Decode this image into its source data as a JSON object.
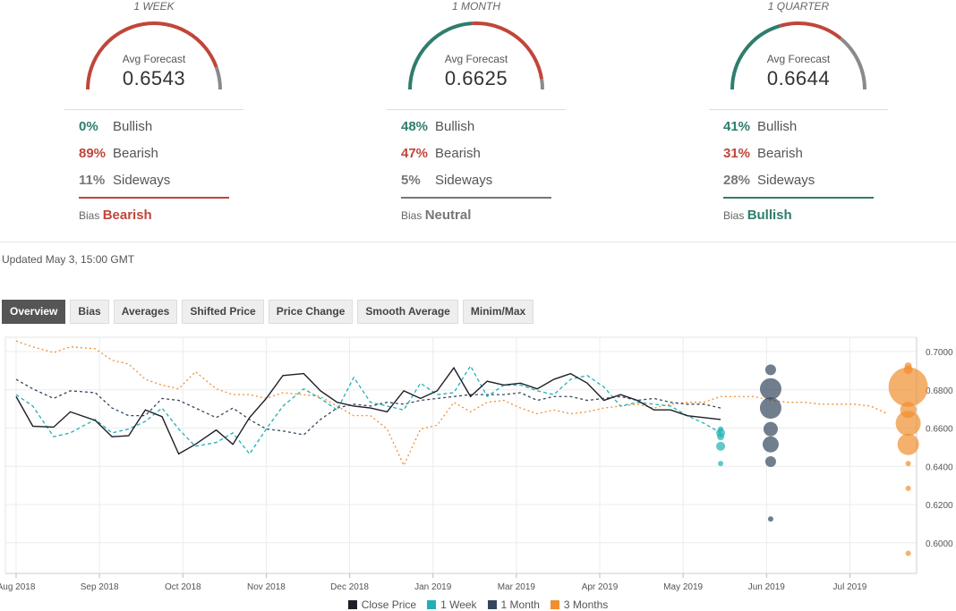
{
  "panels": [
    {
      "period": "1 WEEK",
      "avg_label": "Avg Forecast",
      "avg_value": "0.6543",
      "bullish_pct": "0%",
      "bearish_pct": "89%",
      "sideways_pct": "11%",
      "bullish_label": "Bullish",
      "bearish_label": "Bearish",
      "sideways_label": "Sideways",
      "bias_label": "Bias",
      "bias_value": "Bearish",
      "bias_color": "#c0463a",
      "bullish": 0,
      "bearish": 89,
      "sideways": 11
    },
    {
      "period": "1 MONTH",
      "avg_label": "Avg Forecast",
      "avg_value": "0.6625",
      "bullish_pct": "48%",
      "bearish_pct": "47%",
      "sideways_pct": "5%",
      "bullish_label": "Bullish",
      "bearish_label": "Bearish",
      "sideways_label": "Sideways",
      "bias_label": "Bias",
      "bias_value": "Neutral",
      "bias_color": "#777777",
      "bullish": 48,
      "bearish": 47,
      "sideways": 5
    },
    {
      "period": "1 QUARTER",
      "avg_label": "Avg Forecast",
      "avg_value": "0.6644",
      "bullish_pct": "41%",
      "bearish_pct": "31%",
      "sideways_pct": "28%",
      "bullish_label": "Bullish",
      "bearish_label": "Bearish",
      "sideways_label": "Sideways",
      "bias_label": "Bias",
      "bias_value": "Bullish",
      "bias_color": "#2f7d6d",
      "bullish": 41,
      "bearish": 31,
      "sideways": 28
    }
  ],
  "colors": {
    "bullish": "#2f7d6d",
    "bearish": "#c0463a",
    "sideways": "#8a8a8a"
  },
  "updated": "Updated May 3, 15:00 GMT",
  "tabs": [
    "Overview",
    "Bias",
    "Averages",
    "Shifted Price",
    "Price Change",
    "Smooth Average",
    "Minim/Max"
  ],
  "active_tab": "Overview",
  "chart_data": {
    "type": "line",
    "x_ticks": [
      "Aug 2018",
      "Sep 2018",
      "Oct 2018",
      "Nov 2018",
      "Dec 2018",
      "Jan 2019",
      "Mar 2019",
      "Apr 2019",
      "May 2019",
      "Jun 2019",
      "Jul 2019"
    ],
    "x_tick_positions": [
      0,
      1,
      2,
      3,
      4,
      5,
      6,
      7,
      8,
      9,
      10
    ],
    "y_ticks": [
      "0.6000",
      "0.6200",
      "0.6400",
      "0.6600",
      "0.6800",
      "0.7000"
    ],
    "ylim": [
      0.584,
      0.7075
    ],
    "xlim": [
      0,
      10.5
    ],
    "series": [
      {
        "name": "Close Price",
        "color": "#1e1e28",
        "dash": "",
        "x": [
          0,
          0.2,
          0.45,
          0.65,
          0.95,
          1.15,
          1.35,
          1.55,
          1.75,
          1.95,
          2.15,
          2.4,
          2.6,
          2.8,
          3.0,
          3.2,
          3.45,
          3.65,
          3.85,
          4.05,
          4.25,
          4.45,
          4.65,
          4.85,
          5.05,
          5.25,
          5.45,
          5.65,
          5.85,
          6.05,
          6.25,
          6.45,
          6.65,
          6.85,
          7.05,
          7.25,
          7.45,
          7.65,
          7.85,
          8.05,
          8.25,
          8.45
        ],
        "y": [
          0.6765,
          0.661,
          0.6605,
          0.6685,
          0.664,
          0.6555,
          0.656,
          0.6695,
          0.666,
          0.6465,
          0.6515,
          0.659,
          0.6515,
          0.6655,
          0.6755,
          0.6875,
          0.6885,
          0.6795,
          0.6735,
          0.6715,
          0.6705,
          0.6685,
          0.6795,
          0.6755,
          0.6795,
          0.6915,
          0.6765,
          0.6845,
          0.6825,
          0.6835,
          0.6805,
          0.6855,
          0.6885,
          0.6835,
          0.6745,
          0.6775,
          0.6745,
          0.6695,
          0.6695,
          0.6665,
          0.6655,
          0.6645
        ]
      },
      {
        "name": "1 Week",
        "color": "#21b0b4",
        "dash": "4,3",
        "x": [
          0,
          0.2,
          0.45,
          0.65,
          0.95,
          1.15,
          1.35,
          1.55,
          1.75,
          1.95,
          2.15,
          2.4,
          2.6,
          2.8,
          3.0,
          3.2,
          3.45,
          3.65,
          3.85,
          4.05,
          4.25,
          4.45,
          4.65,
          4.85,
          5.05,
          5.25,
          5.45,
          5.65,
          5.85,
          6.05,
          6.25,
          6.45,
          6.65,
          6.85,
          7.05,
          7.25,
          7.45,
          7.65,
          7.85,
          8.05,
          8.25,
          8.45
        ],
        "y": [
          0.6775,
          0.6715,
          0.6555,
          0.6575,
          0.6645,
          0.6575,
          0.6595,
          0.6635,
          0.6705,
          0.6595,
          0.6505,
          0.6525,
          0.6575,
          0.6465,
          0.6595,
          0.6715,
          0.6805,
          0.6755,
          0.6695,
          0.6865,
          0.6735,
          0.6715,
          0.6695,
          0.6835,
          0.6775,
          0.6785,
          0.6925,
          0.6765,
          0.6825,
          0.6825,
          0.6795,
          0.6775,
          0.6855,
          0.6875,
          0.6815,
          0.6715,
          0.6735,
          0.6725,
          0.6715,
          0.6665,
          0.6625,
          0.6575
        ]
      },
      {
        "name": "1 Month",
        "color": "#34475e",
        "dash": "3,3",
        "x": [
          0,
          0.2,
          0.45,
          0.65,
          0.95,
          1.15,
          1.35,
          1.55,
          1.75,
          1.95,
          2.15,
          2.4,
          2.6,
          2.8,
          3.0,
          3.2,
          3.45,
          3.65,
          3.85,
          4.05,
          4.25,
          4.45,
          4.65,
          4.85,
          5.05,
          5.25,
          5.45,
          5.65,
          5.85,
          6.05,
          6.25,
          6.45,
          6.65,
          6.85,
          7.05,
          7.25,
          7.45,
          7.65,
          7.85,
          8.05,
          8.25,
          8.45
        ],
        "y": [
          0.6855,
          0.6805,
          0.6755,
          0.6795,
          0.6785,
          0.6705,
          0.6665,
          0.6665,
          0.6755,
          0.6745,
          0.6705,
          0.6655,
          0.6705,
          0.6645,
          0.6595,
          0.6585,
          0.6565,
          0.6645,
          0.6705,
          0.6725,
          0.6715,
          0.6735,
          0.6725,
          0.6745,
          0.6755,
          0.6765,
          0.6775,
          0.6775,
          0.6775,
          0.6785,
          0.6745,
          0.6765,
          0.6765,
          0.6745,
          0.6755,
          0.6765,
          0.6745,
          0.6755,
          0.6735,
          0.6725,
          0.6725,
          0.6705
        ]
      },
      {
        "name": "3 Months",
        "color": "#ef8f2f",
        "dash": "2,3",
        "x": [
          0,
          0.2,
          0.45,
          0.65,
          0.95,
          1.15,
          1.35,
          1.55,
          1.75,
          1.95,
          2.15,
          2.4,
          2.6,
          2.8,
          3.0,
          3.2,
          3.45,
          3.65,
          3.85,
          4.05,
          4.25,
          4.45,
          4.65,
          4.85,
          5.05,
          5.25,
          5.45,
          5.65,
          5.85,
          6.05,
          6.25,
          6.45,
          6.65,
          6.85,
          7.05,
          7.25,
          7.45,
          7.65,
          7.85,
          8.05,
          8.25,
          8.45,
          8.65,
          8.85,
          9.05,
          9.25,
          9.45,
          9.65,
          9.85,
          10.05,
          10.25,
          10.45
        ],
        "y": [
          0.7055,
          0.7025,
          0.6995,
          0.7025,
          0.7015,
          0.6955,
          0.6935,
          0.6855,
          0.6825,
          0.6805,
          0.6895,
          0.6805,
          0.6775,
          0.6775,
          0.6755,
          0.6785,
          0.6775,
          0.6765,
          0.6715,
          0.6665,
          0.6665,
          0.6595,
          0.6405,
          0.6595,
          0.6615,
          0.6735,
          0.6685,
          0.6735,
          0.6745,
          0.6705,
          0.6675,
          0.6695,
          0.6675,
          0.6685,
          0.6705,
          0.6715,
          0.6725,
          0.6705,
          0.6725,
          0.6735,
          0.6735,
          0.6765,
          0.6765,
          0.6765,
          0.6745,
          0.6735,
          0.6735,
          0.6725,
          0.6725,
          0.6725,
          0.6715,
          0.6675
        ]
      }
    ],
    "forecast_bubbles": [
      {
        "series": "1 Week",
        "color": "#21b0b4",
        "x": 8.45,
        "points": [
          {
            "y": 0.6595,
            "r": 3
          },
          {
            "y": 0.6575,
            "r": 5
          },
          {
            "y": 0.6555,
            "r": 4
          },
          {
            "y": 0.6505,
            "r": 5
          },
          {
            "y": 0.6415,
            "r": 3
          }
        ]
      },
      {
        "series": "1 Month",
        "color": "#34475e",
        "x": 9.05,
        "points": [
          {
            "y": 0.6905,
            "r": 6
          },
          {
            "y": 0.6805,
            "r": 12
          },
          {
            "y": 0.6705,
            "r": 12
          },
          {
            "y": 0.6595,
            "r": 8
          },
          {
            "y": 0.6515,
            "r": 9
          },
          {
            "y": 0.6425,
            "r": 6
          },
          {
            "y": 0.6125,
            "r": 3
          }
        ]
      },
      {
        "series": "3 Months",
        "color": "#ef8f2f",
        "x": 10.7,
        "points": [
          {
            "y": 0.6925,
            "r": 4
          },
          {
            "y": 0.6905,
            "r": 5
          },
          {
            "y": 0.6815,
            "r": 22
          },
          {
            "y": 0.6695,
            "r": 9
          },
          {
            "y": 0.6625,
            "r": 14
          },
          {
            "y": 0.6515,
            "r": 12
          },
          {
            "y": 0.6415,
            "r": 3
          },
          {
            "y": 0.6285,
            "r": 3
          },
          {
            "y": 0.5945,
            "r": 3
          }
        ]
      }
    ],
    "legend": [
      "Close Price",
      "1 Week",
      "1 Month",
      "3 Months"
    ],
    "legend_placement": "bottom-center",
    "grid": true
  }
}
